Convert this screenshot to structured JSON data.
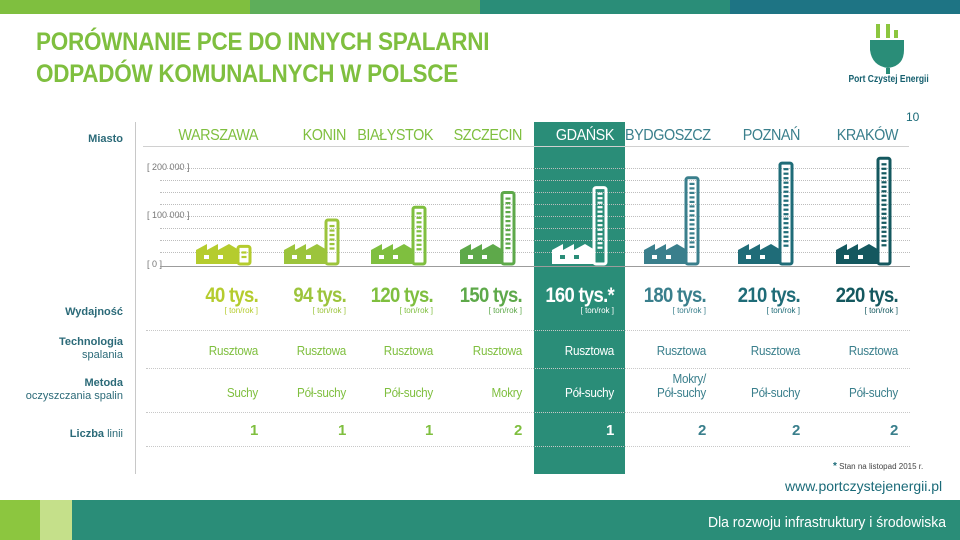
{
  "title_line1": "PORÓWNANIE PCE DO INNYCH SPALARNI",
  "title_line2": "ODPADÓW KOMUNALNYCH W POLSCE",
  "logo_text": "Port Czystej Energii",
  "page_number": "10",
  "row_labels": {
    "city": "Miasto",
    "capacity": "Wydajność",
    "technology_bold": "Technologia",
    "technology_light": "spalania",
    "method_bold": "Metoda",
    "method_light": "oczyszczania spalin",
    "lines_bold": "Liczba",
    "lines_light": "linii"
  },
  "colors": {
    "green_light": "#b5cc2e",
    "green_mid": "#7fbf3f",
    "green_dark": "#4f9a4a",
    "teal": "#2a8d78",
    "blue_teal": "#3a7f8c",
    "navy_teal": "#14585f",
    "label": "#2b6a78"
  },
  "chart_data": {
    "type": "bar",
    "title": "",
    "xlabel": "",
    "ylabel": "",
    "ylim": [
      0,
      250000
    ],
    "y_ticks": [
      "[ 0 ]",
      "[ 100 000 ]",
      "[ 200 000 ]"
    ],
    "y_tick_values": [
      0,
      100000,
      200000
    ],
    "categories": [
      "WARSZAWA",
      "KONIN",
      "BIAŁYSTOK",
      "SZCZECIN",
      "GDAŃSK",
      "BYDGOSZCZ",
      "POZNAŃ",
      "KRAKÓW"
    ],
    "values": [
      40000,
      94000,
      120000,
      150000,
      160000,
      180000,
      210000,
      220000
    ],
    "value_labels": [
      "40 tys.",
      "94 tys.",
      "120 tys.",
      "150 tys.",
      "160 tys.*",
      "180 tys.",
      "210 tys.",
      "220 tys."
    ],
    "unit_label": "[ ton/rok ]",
    "highlight": "GDAŃSK",
    "grid": true,
    "legend": "none",
    "bar_colors": [
      "#b5cc2e",
      "#9cc43c",
      "#7fbf3f",
      "#5ea94a",
      "#ffffff",
      "#3a7f8c",
      "#1f6c78",
      "#14585f"
    ]
  },
  "table": {
    "technology": [
      "Rusztowa",
      "Rusztowa",
      "Rusztowa",
      "Rusztowa",
      "Rusztowa",
      "Rusztowa",
      "Rusztowa",
      "Rusztowa"
    ],
    "method": [
      "Suchy",
      "Pół-suchy",
      "Pół-suchy",
      "Mokry",
      "Pół-suchy",
      "Mokry/ Pół-suchy",
      "Pół-suchy",
      "Pół-suchy"
    ],
    "lines": [
      "1",
      "1",
      "1",
      "2",
      "1",
      "2",
      "2",
      "2"
    ]
  },
  "footnote_mark": "*",
  "footnote_text": "Stan na listopad 2015 r.",
  "website": "www.portczystejenergii.pl",
  "slogan": "Dla rozwoju infrastruktury i środowiska"
}
